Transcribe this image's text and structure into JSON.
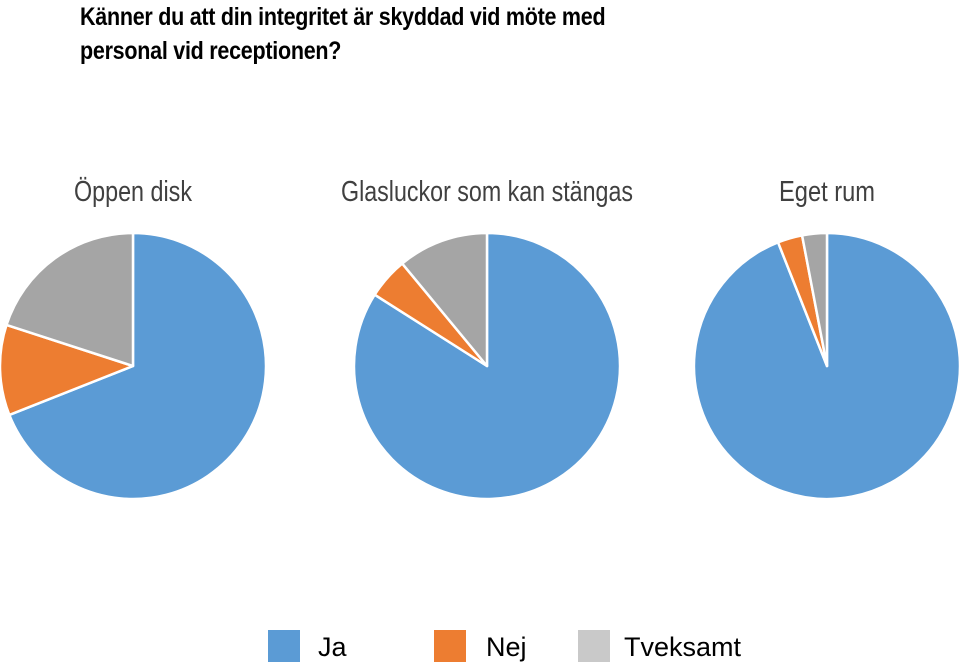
{
  "title_lines": [
    "Känner du att din integritet är skyddad vid möte med",
    "personal vid receptionen?"
  ],
  "chart_data": [
    {
      "type": "pie",
      "title": "Öppen disk",
      "categories": [
        "Ja",
        "Nej",
        "Tveksamt"
      ],
      "values": [
        69,
        11,
        20
      ]
    },
    {
      "type": "pie",
      "title": "Glasluckor som kan stängas",
      "categories": [
        "Ja",
        "Nej",
        "Tveksamt"
      ],
      "values": [
        84,
        5,
        11
      ]
    },
    {
      "type": "pie",
      "title": "Eget rum",
      "categories": [
        "Ja",
        "Nej",
        "Tveksamt"
      ],
      "values": [
        94,
        3,
        3
      ]
    }
  ],
  "legend": [
    {
      "label": "Ja",
      "color": "#5b9bd5"
    },
    {
      "label": "Nej",
      "color": "#ed7d31"
    },
    {
      "label": "Tveksamt",
      "color": "#c9c9c9"
    }
  ],
  "slice_colors": {
    "Ja": "#5b9bd5",
    "Nej": "#ed7d31",
    "Tveksamt": "#a5a5a5"
  }
}
